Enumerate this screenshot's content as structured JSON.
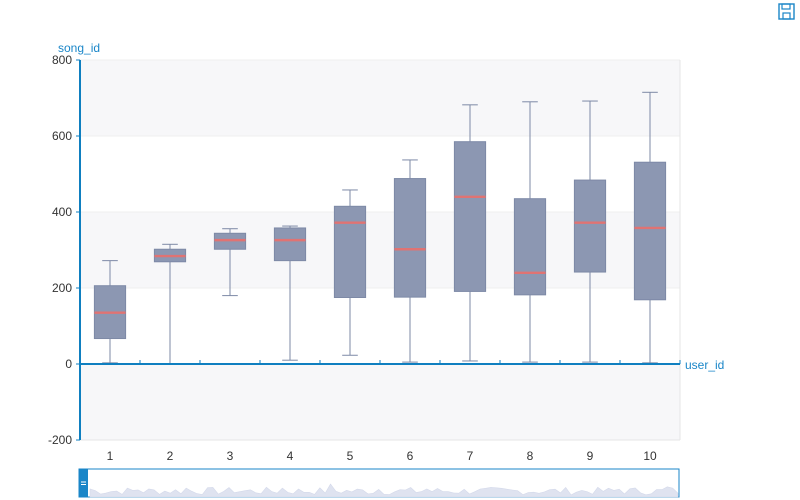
{
  "toolbar": {
    "save_icon": "save-as-image-icon"
  },
  "colors": {
    "axis": "#0f7fc0",
    "axis_label": "#1a86c8",
    "box_fill": "#8c97b2",
    "box_stroke": "#7d89a6",
    "median": "#e07373",
    "band": "#f7f7f9",
    "grid": "#e6e6e6",
    "slider_border": "#1a86c8",
    "slider_handle": "#1a86c8",
    "slider_shadow": "#dfe3f0",
    "icon": "#1a86c8"
  },
  "chart_data": {
    "type": "boxplot",
    "xlabel": "user_id",
    "ylabel": "song_id",
    "categories": [
      "1",
      "2",
      "3",
      "4",
      "5",
      "6",
      "7",
      "8",
      "9",
      "10"
    ],
    "ylim": [
      -200,
      800
    ],
    "yticks": [
      "-200",
      "0",
      "200",
      "400",
      "600",
      "800"
    ],
    "boxes": [
      {
        "min": 3,
        "q1": 67,
        "median": 135,
        "q3": 206,
        "max": 272
      },
      {
        "min": 0,
        "q1": 269,
        "median": 284,
        "q3": 302,
        "max": 315
      },
      {
        "min": 180,
        "q1": 302,
        "median": 326,
        "q3": 344,
        "max": 356
      },
      {
        "min": 10,
        "q1": 272,
        "median": 326,
        "q3": 358,
        "max": 363
      },
      {
        "min": 23,
        "q1": 175,
        "median": 372,
        "q3": 415,
        "max": 458
      },
      {
        "min": 5,
        "q1": 176,
        "median": 302,
        "q3": 488,
        "max": 537
      },
      {
        "min": 8,
        "q1": 191,
        "median": 440,
        "q3": 585,
        "max": 682
      },
      {
        "min": 5,
        "q1": 182,
        "median": 240,
        "q3": 435,
        "max": 690
      },
      {
        "min": 5,
        "q1": 242,
        "median": 372,
        "q3": 484,
        "max": 692
      },
      {
        "min": 3,
        "q1": 169,
        "median": 358,
        "q3": 531,
        "max": 715
      }
    ],
    "grid": true,
    "datazoom": {
      "start": 0,
      "end": 100
    }
  }
}
